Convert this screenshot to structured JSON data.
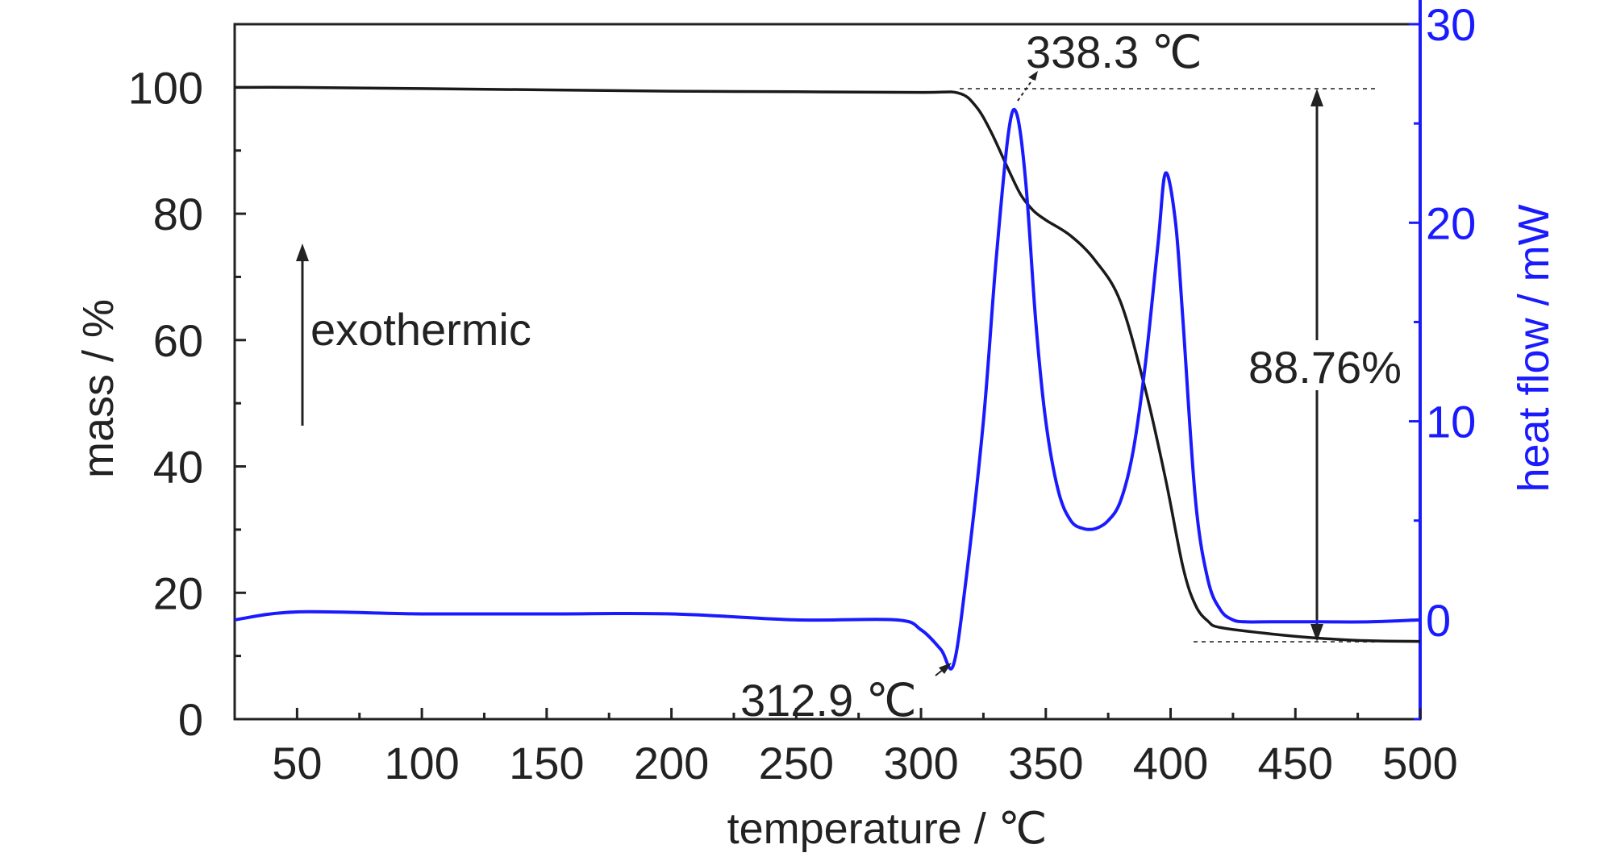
{
  "chart_data": {
    "type": "line",
    "xlabel": "temperature / ℃",
    "ylabel": "mass / %",
    "y2label": "heat flow / mW",
    "xlim": [
      25,
      500
    ],
    "ylim": [
      0,
      110
    ],
    "y2lim": [
      -5,
      30
    ],
    "x_ticks": [
      50,
      100,
      150,
      200,
      250,
      300,
      350,
      400,
      450,
      500
    ],
    "y_ticks": [
      0,
      20,
      40,
      60,
      80,
      100
    ],
    "y2_ticks": [
      0,
      10,
      20,
      30
    ],
    "grid": false,
    "colors": {
      "mass": "#1a1a1a",
      "heat_flow": "#1a1aff",
      "axis_left": "#222222",
      "axis_right": "#1a1aff"
    },
    "series": [
      {
        "axis": "left",
        "x": [
          25,
          50,
          100,
          150,
          200,
          250,
          300,
          315,
          322,
          328,
          335,
          340,
          345,
          350,
          360,
          370,
          380,
          390,
          398,
          405,
          410,
          415,
          420,
          440,
          460,
          480,
          500
        ],
        "values": [
          100,
          100,
          99.8,
          99.6,
          99.4,
          99.3,
          99.2,
          99.1,
          97,
          93,
          87,
          83,
          80.5,
          79,
          76.5,
          72.5,
          66,
          52,
          38,
          24,
          18,
          15.5,
          14.5,
          13.5,
          12.8,
          12.4,
          12.3
        ]
      },
      {
        "axis": "right",
        "x": [
          25,
          50,
          100,
          150,
          200,
          250,
          290,
          300,
          308,
          312.9,
          318,
          325,
          330,
          335,
          338.3,
          342,
          346,
          350,
          355,
          360,
          365,
          370,
          375,
          380,
          385,
          390,
          395,
          398,
          402,
          405,
          410,
          415,
          420,
          425,
          430,
          440,
          460,
          480,
          500
        ],
        "values": [
          0,
          0.4,
          0.3,
          0.3,
          0.3,
          0,
          0,
          -0.5,
          -1.5,
          -2.3,
          2,
          10,
          18,
          24.5,
          25.5,
          22,
          15,
          10,
          6.5,
          5,
          4.6,
          4.6,
          5,
          6,
          8.5,
          13,
          19,
          22.5,
          20,
          15,
          6,
          2,
          0.5,
          0,
          -0.1,
          -0.1,
          -0.1,
          -0.1,
          0
        ]
      }
    ],
    "annotations": [
      {
        "text": "338.3 ℃",
        "x": 338.3
      },
      {
        "text": "312.9 ℃",
        "x": 312.9
      },
      {
        "text": "88.76%"
      },
      {
        "text": "exothermic"
      }
    ]
  }
}
